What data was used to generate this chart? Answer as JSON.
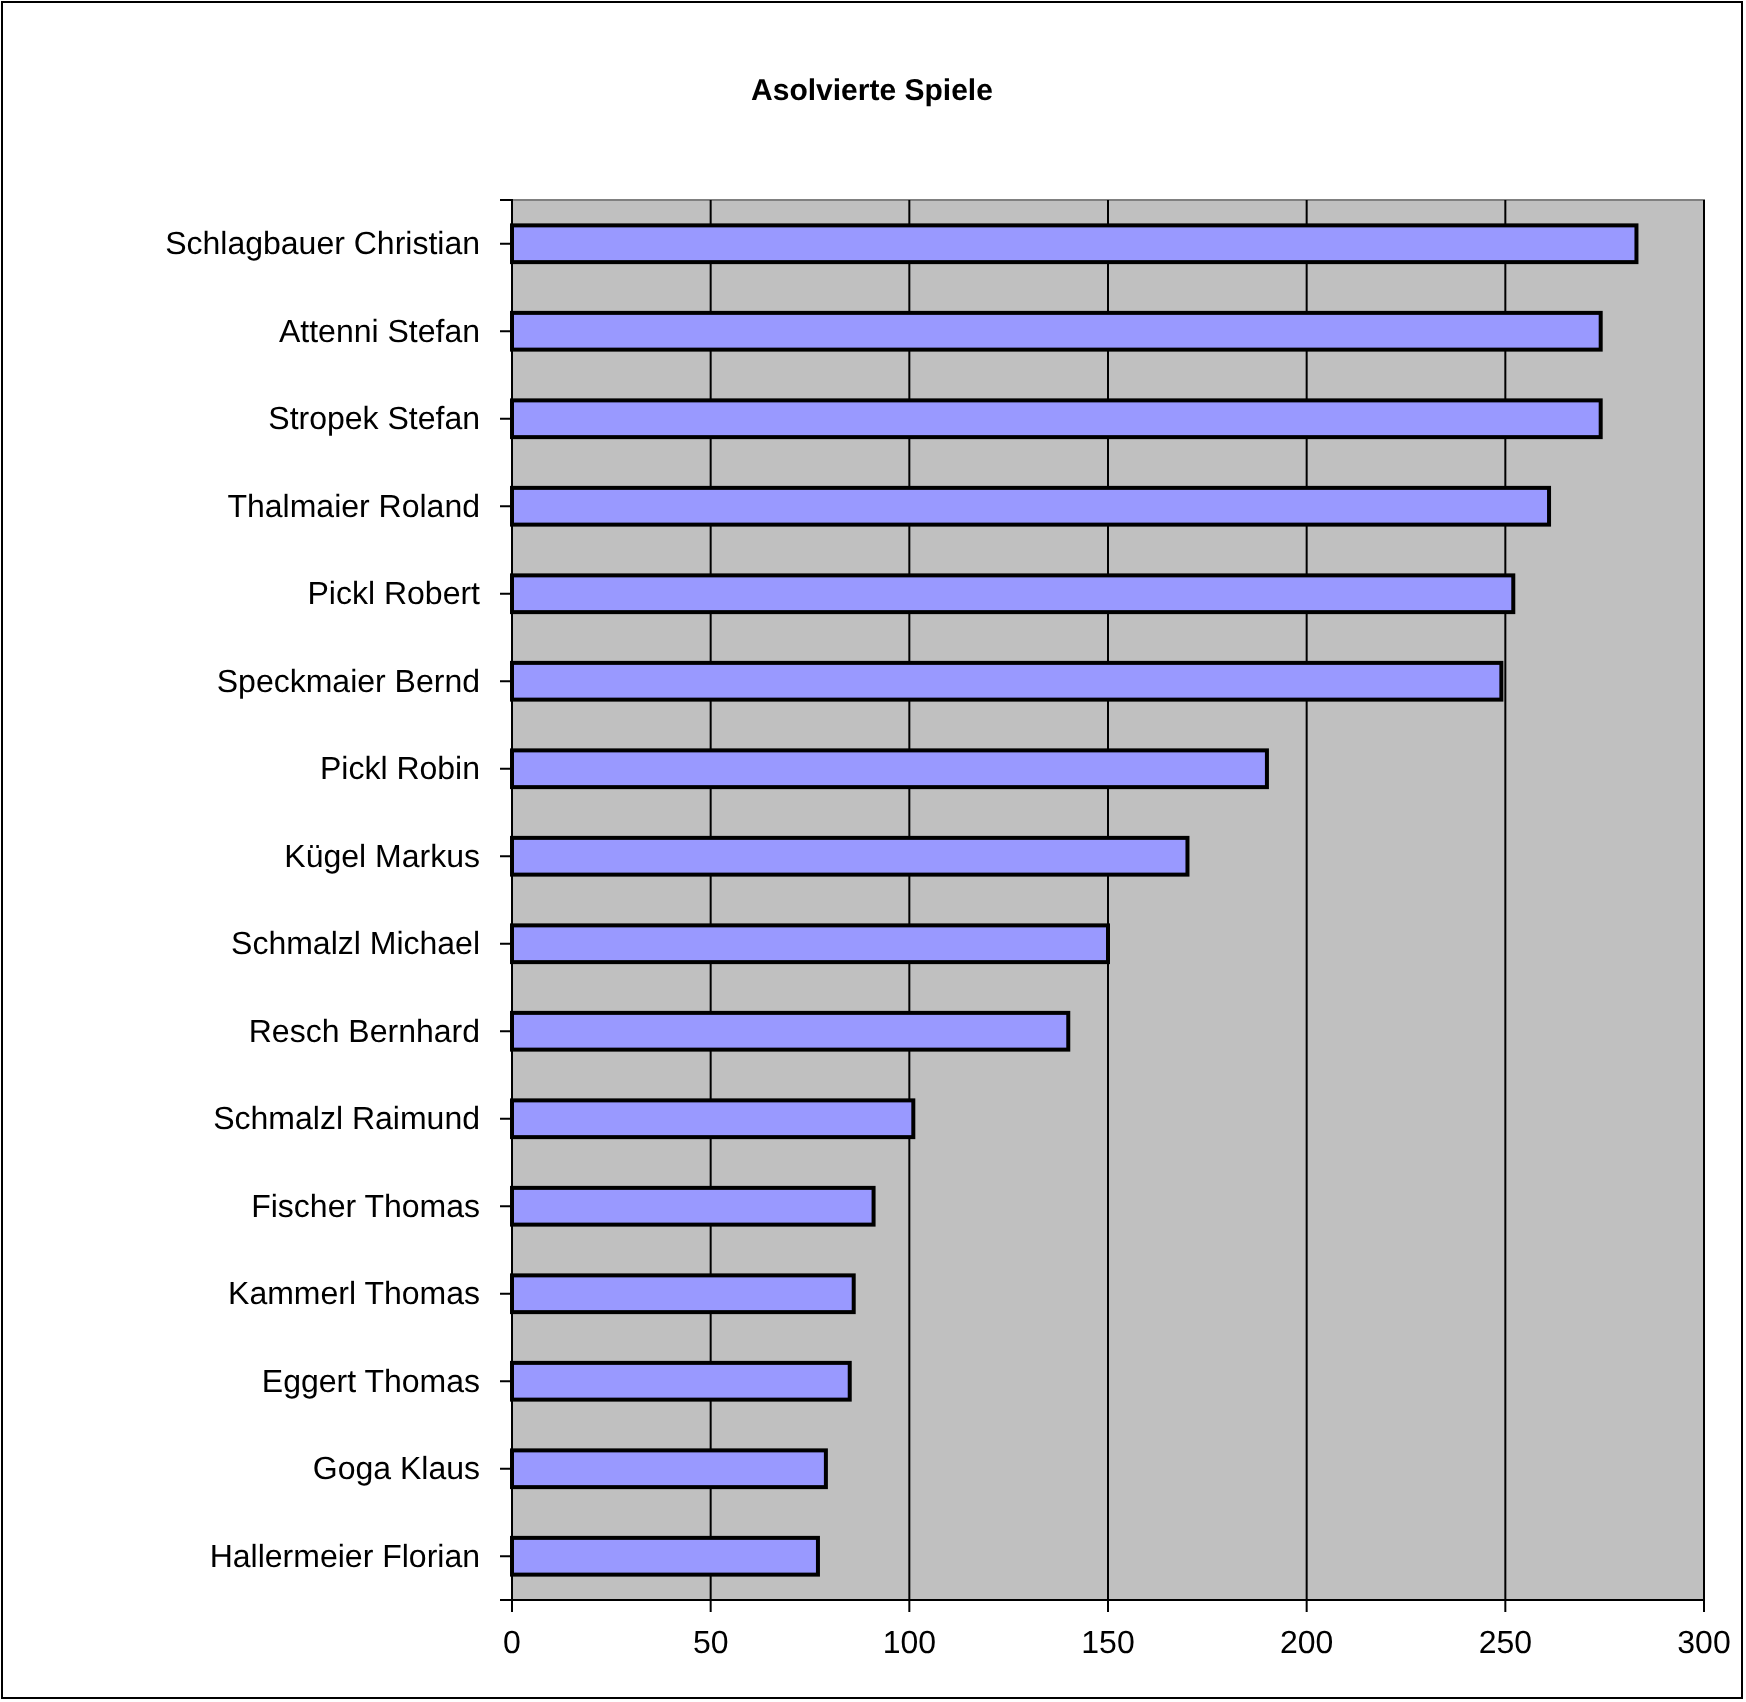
{
  "chart_data": {
    "type": "bar",
    "orientation": "horizontal",
    "title": "Asolvierte Spiele",
    "categories": [
      "Schlagbauer Christian",
      "Attenni Stefan",
      "Stropek Stefan",
      "Thalmaier Roland",
      "Pickl Robert",
      "Speckmaier Bernd",
      "Pickl Robin",
      "Kügel Markus",
      "Schmalzl Michael",
      "Resch Bernhard",
      "Schmalzl Raimund",
      "Fischer Thomas",
      "Kammerl Thomas",
      "Eggert Thomas",
      "Goga Klaus",
      "Hallermeier Florian"
    ],
    "values": [
      283,
      274,
      274,
      261,
      252,
      249,
      190,
      170,
      150,
      140,
      101,
      91,
      86,
      85,
      79,
      77
    ],
    "color": "#9999ff",
    "xlim": [
      0,
      300
    ],
    "xticks": [
      0,
      50,
      100,
      150,
      200,
      250,
      300
    ],
    "grid": "x"
  }
}
